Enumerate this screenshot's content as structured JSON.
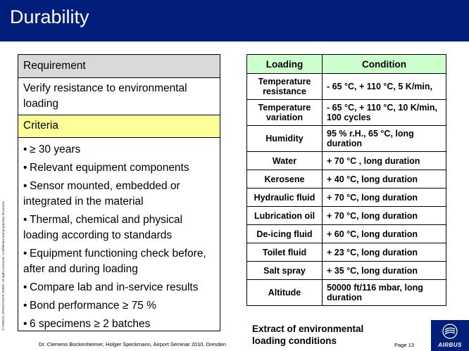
{
  "slide": {
    "title": "Durability"
  },
  "left_panel": {
    "requirement_label": "Requirement",
    "requirement_text": "Verify resistance to environmental loading",
    "criteria_label": "Criteria",
    "criteria_items": [
      "≥ 30 years",
      "Relevant equipment components",
      "Sensor mounted, embedded or integrated in the material",
      "Thermal, chemical and physical loading according to standards",
      "Equipment functioning check before, after and during loading",
      "Compare lab and in-service results",
      "Bond performance ≥ 75 %",
      "6 specimens ≥ 2 batches"
    ]
  },
  "table": {
    "headers": {
      "loading": "Loading",
      "condition": "Condition"
    },
    "rows": [
      {
        "loading": "Temperature resistance",
        "condition": "- 65 °C, + 110 °C, 5 K/min,"
      },
      {
        "loading": "Temperature variation",
        "condition": "- 65 °C, + 110 °C, 10 K/min, 100 cycles"
      },
      {
        "loading": "Humidity",
        "condition": "95 % r.H., 65 °C, long duration"
      },
      {
        "loading": "Water",
        "condition": "+ 70 °C , long duration"
      },
      {
        "loading": "Kerosene",
        "condition": "+ 40 °C, long duration"
      },
      {
        "loading": "Hydraulic fluid",
        "condition": "+ 70 °C, long duration"
      },
      {
        "loading": "Lubrication oil",
        "condition": "+ 70 °C, long duration"
      },
      {
        "loading": "De-icing fluid",
        "condition": "+ 60 °C, long duration"
      },
      {
        "loading": "Toilet fluid",
        "condition": "+ 23 °C, long duration"
      },
      {
        "loading": "Salt spray",
        "condition": "+ 35 °C, long duration"
      },
      {
        "loading": "Altitude",
        "condition": "50000 ft/116 mbar, long duration"
      }
    ],
    "caption": "Extract of environmental loading conditions"
  },
  "footer": {
    "authors": "Dr. Clemens Bockenheimer, Holger Speckmann, Airport Seminar 2010, Dresden",
    "page": "Page 13",
    "copyright": "© AIRBUS OPERATIONS GMBH. All rights reserved. Confidential and proprietary document."
  },
  "logo": {
    "text": "AIRBUS",
    "icon": "airbus-logo-icon"
  },
  "colors": {
    "title_bar": "#001e7a",
    "requirement_header": "#d9d9d9",
    "criteria_header": "#ffff99",
    "table_header": "#ccffcc"
  }
}
